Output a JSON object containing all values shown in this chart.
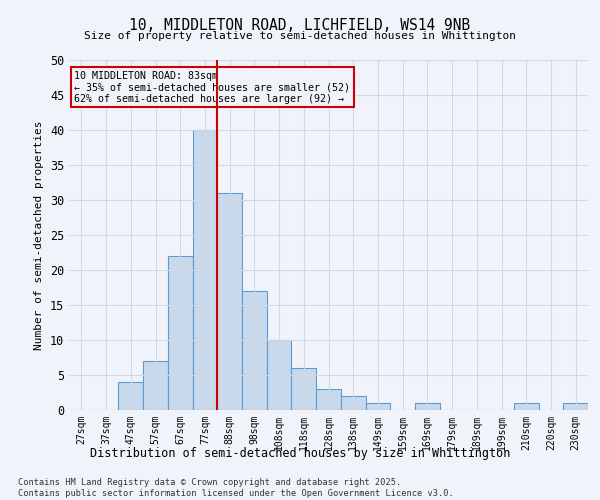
{
  "title_line1": "10, MIDDLETON ROAD, LICHFIELD, WS14 9NB",
  "title_line2": "Size of property relative to semi-detached houses in Whittington",
  "xlabel": "Distribution of semi-detached houses by size in Whittington",
  "ylabel": "Number of semi-detached properties",
  "categories": [
    "27sqm",
    "37sqm",
    "47sqm",
    "57sqm",
    "67sqm",
    "77sqm",
    "88sqm",
    "98sqm",
    "108sqm",
    "118sqm",
    "128sqm",
    "138sqm",
    "149sqm",
    "159sqm",
    "169sqm",
    "179sqm",
    "189sqm",
    "199sqm",
    "210sqm",
    "220sqm",
    "230sqm"
  ],
  "values": [
    0,
    0,
    4,
    7,
    22,
    40,
    31,
    17,
    10,
    6,
    3,
    2,
    1,
    0,
    1,
    0,
    0,
    0,
    1,
    0,
    1
  ],
  "bar_color": "#c9d9ec",
  "bar_edge_color": "#5b9bd5",
  "property_line_x": 5.5,
  "property_value": 83,
  "property_label": "10 MIDDLETON ROAD: 83sqm",
  "smaller_pct": 35,
  "smaller_count": 52,
  "larger_pct": 62,
  "larger_count": 92,
  "vline_color": "#cc0000",
  "annotation_box_color": "#cc0000",
  "ylim": [
    0,
    50
  ],
  "yticks": [
    0,
    5,
    10,
    15,
    20,
    25,
    30,
    35,
    40,
    45,
    50
  ],
  "grid_color": "#d0d8e8",
  "background_color": "#f0f4fa",
  "footnote1": "Contains HM Land Registry data © Crown copyright and database right 2025.",
  "footnote2": "Contains public sector information licensed under the Open Government Licence v3.0."
}
